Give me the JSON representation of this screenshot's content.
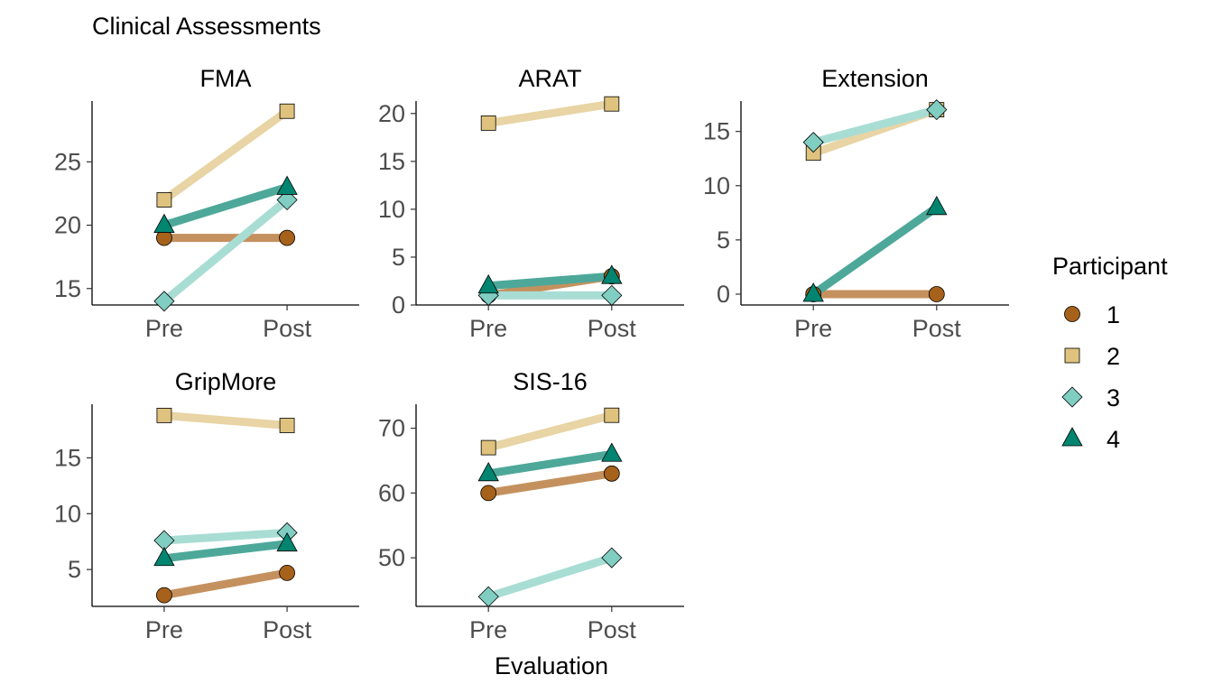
{
  "chart_data": {
    "type": "line",
    "title": "Clinical Assessments",
    "xlabel": "Evaluation",
    "categories": [
      "Pre",
      "Post"
    ],
    "legend": {
      "title": "Participant",
      "position": "right",
      "entries": [
        {
          "label": "1",
          "shape": "circle",
          "color": "#A6611A",
          "line_color": "#C4915E"
        },
        {
          "label": "2",
          "shape": "square",
          "color": "#DFC27D",
          "line_color": "#E8D4A4"
        },
        {
          "label": "3",
          "shape": "diamond",
          "color": "#80CDC1",
          "line_color": "#A8DDD4"
        },
        {
          "label": "4",
          "shape": "triangle",
          "color": "#018571",
          "line_color": "#4DA89A"
        }
      ]
    },
    "panels": [
      {
        "title": "FMA",
        "ylim": [
          13.7,
          29.8
        ],
        "yticks": [
          15,
          20,
          25
        ],
        "ytick_labels": [
          "15",
          "20",
          "25"
        ],
        "series": [
          {
            "participant": "1",
            "values": [
              19,
              19
            ]
          },
          {
            "participant": "2",
            "values": [
              22,
              29
            ]
          },
          {
            "participant": "3",
            "values": [
              14,
              22
            ]
          },
          {
            "participant": "4",
            "values": [
              20,
              23
            ]
          }
        ]
      },
      {
        "title": "ARAT",
        "ylim": [
          0,
          21.3
        ],
        "yticks": [
          0,
          5,
          10,
          15,
          20
        ],
        "ytick_labels": [
          "0",
          "5",
          "10",
          "15",
          "20"
        ],
        "series": [
          {
            "participant": "1",
            "values": [
              1,
              3
            ]
          },
          {
            "participant": "2",
            "values": [
              19,
              21
            ]
          },
          {
            "participant": "3",
            "values": [
              1,
              1
            ]
          },
          {
            "participant": "4",
            "values": [
              2,
              3
            ]
          }
        ]
      },
      {
        "title": "Extension",
        "ylim": [
          -1.0,
          17.8
        ],
        "yticks": [
          0,
          5,
          10,
          15
        ],
        "ytick_labels": [
          "0",
          "5",
          "10",
          "15"
        ],
        "series": [
          {
            "participant": "1",
            "values": [
              0,
              0
            ]
          },
          {
            "participant": "2",
            "values": [
              13,
              17
            ]
          },
          {
            "participant": "3",
            "values": [
              14,
              17
            ]
          },
          {
            "participant": "4",
            "values": [
              0,
              8
            ]
          }
        ]
      },
      {
        "title": "GripMore",
        "ylim": [
          1.7,
          19.8
        ],
        "yticks": [
          5,
          10,
          15
        ],
        "ytick_labels": [
          "5",
          "10",
          "15"
        ],
        "series": [
          {
            "participant": "1",
            "values": [
              2.7,
              4.7
            ]
          },
          {
            "participant": "2",
            "values": [
              18.8,
              17.9
            ]
          },
          {
            "participant": "3",
            "values": [
              7.6,
              8.3
            ]
          },
          {
            "participant": "4",
            "values": [
              6.0,
              7.3
            ]
          }
        ]
      },
      {
        "title": "SIS-16",
        "ylim": [
          42.5,
          73.7
        ],
        "yticks": [
          50,
          60,
          70
        ],
        "ytick_labels": [
          "50",
          "60",
          "70"
        ],
        "series": [
          {
            "participant": "1",
            "values": [
              60,
              63
            ]
          },
          {
            "participant": "2",
            "values": [
              67,
              72
            ]
          },
          {
            "participant": "3",
            "values": [
              44,
              50
            ]
          },
          {
            "participant": "4",
            "values": [
              63,
              66
            ]
          }
        ]
      }
    ]
  }
}
